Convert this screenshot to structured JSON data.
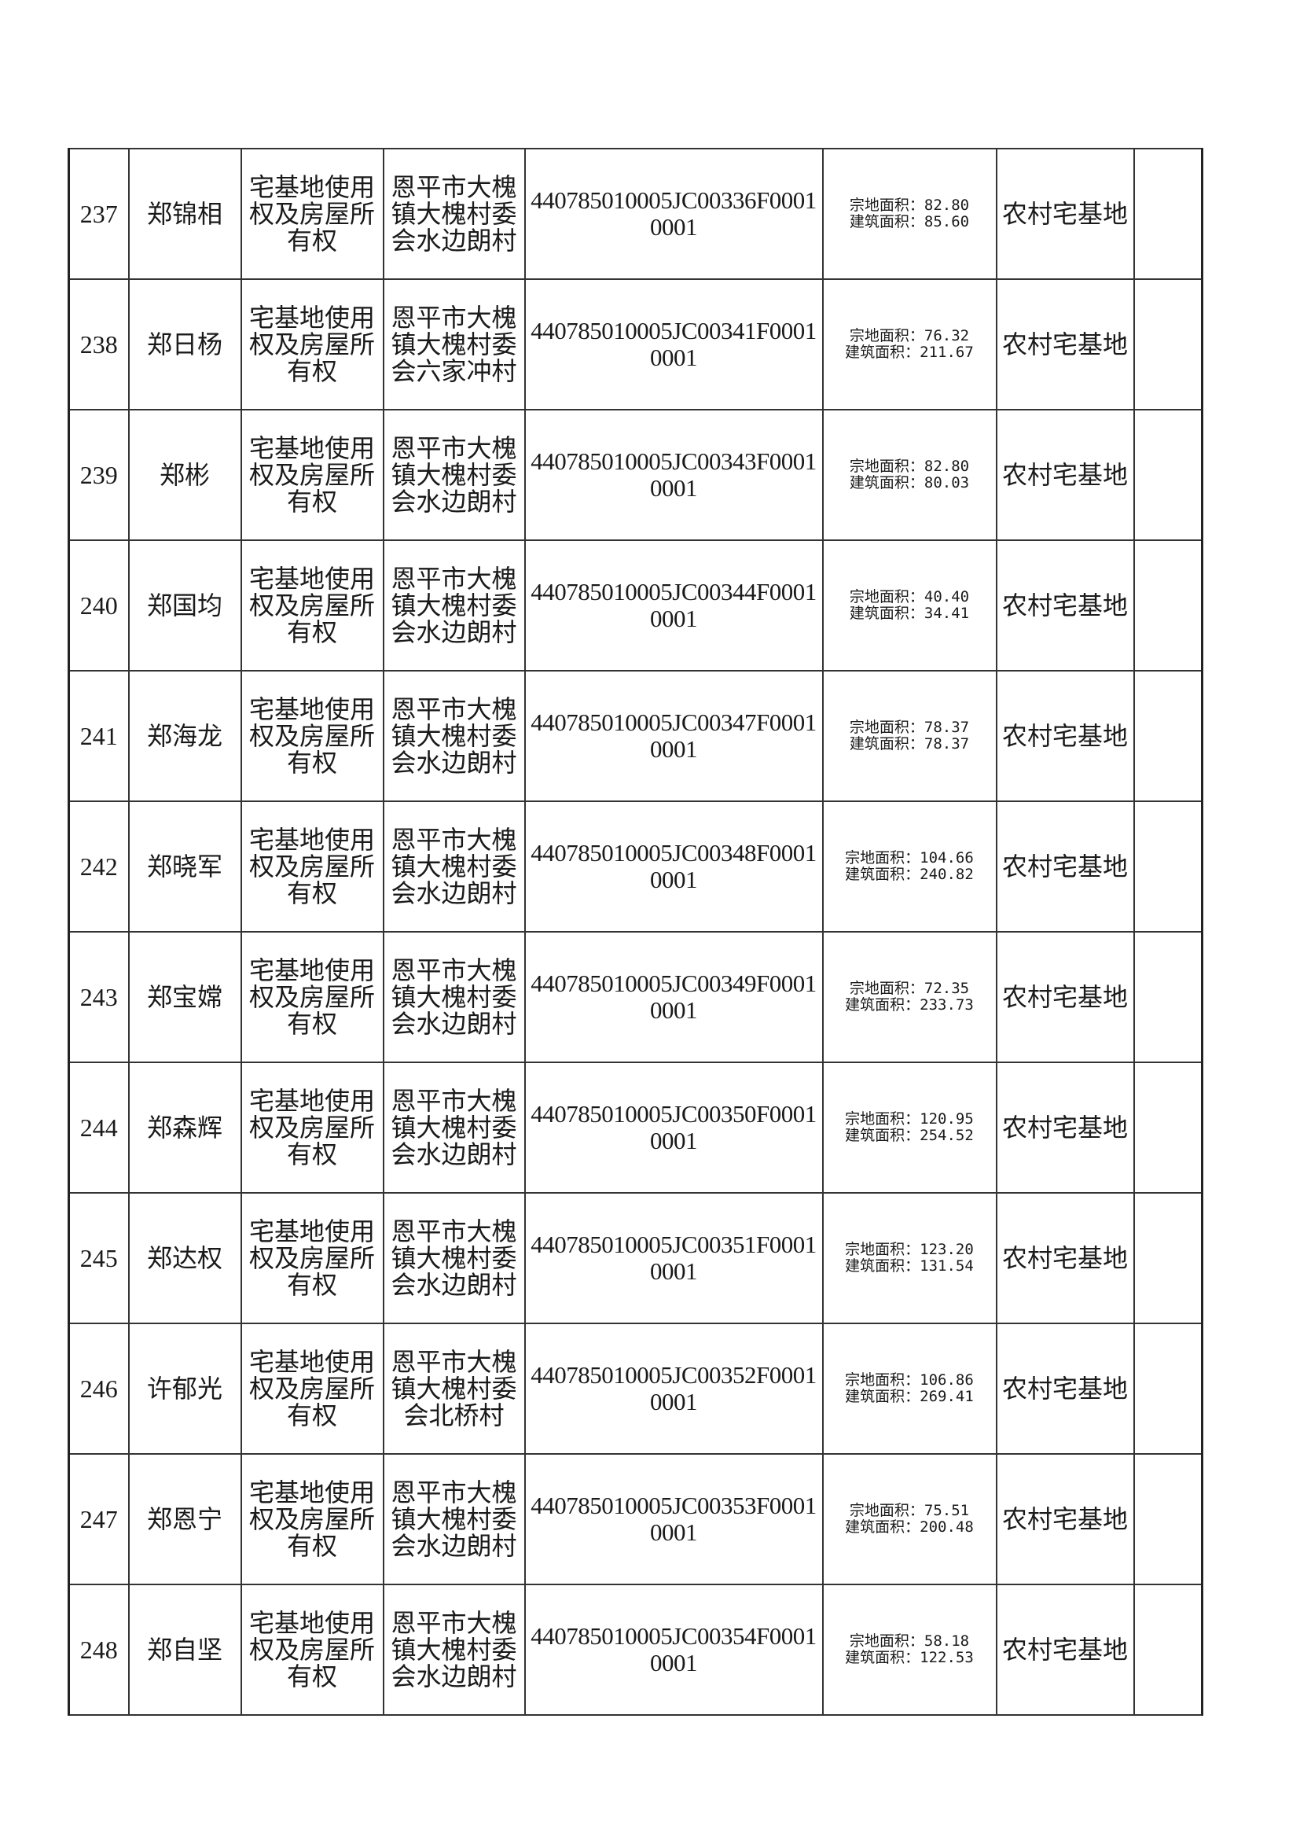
{
  "table": {
    "rows": [
      {
        "no": "237",
        "name": "郑锦相",
        "right_type": "宅基地使用权及房屋所有权",
        "location": "恩平市大槐镇大槐村委会水边朗村",
        "code": "440785010005JC00336F00010001",
        "land_area": "宗地面积：82.80",
        "building_area": "建筑面积：85.60",
        "use": "农村宅基地",
        "remark": ""
      },
      {
        "no": "238",
        "name": "郑日杨",
        "right_type": "宅基地使用权及房屋所有权",
        "location": "恩平市大槐镇大槐村委会六家冲村",
        "code": "440785010005JC00341F00010001",
        "land_area": "宗地面积：76.32",
        "building_area": "建筑面积：211.67",
        "use": "农村宅基地",
        "remark": ""
      },
      {
        "no": "239",
        "name": "郑彬",
        "right_type": "宅基地使用权及房屋所有权",
        "location": "恩平市大槐镇大槐村委会水边朗村",
        "code": "440785010005JC00343F00010001",
        "land_area": "宗地面积：82.80",
        "building_area": "建筑面积：80.03",
        "use": "农村宅基地",
        "remark": ""
      },
      {
        "no": "240",
        "name": "郑国均",
        "right_type": "宅基地使用权及房屋所有权",
        "location": "恩平市大槐镇大槐村委会水边朗村",
        "code": "440785010005JC00344F00010001",
        "land_area": "宗地面积：40.40",
        "building_area": "建筑面积：34.41",
        "use": "农村宅基地",
        "remark": ""
      },
      {
        "no": "241",
        "name": "郑海龙",
        "right_type": "宅基地使用权及房屋所有权",
        "location": "恩平市大槐镇大槐村委会水边朗村",
        "code": "440785010005JC00347F00010001",
        "land_area": "宗地面积：78.37",
        "building_area": "建筑面积：78.37",
        "use": "农村宅基地",
        "remark": ""
      },
      {
        "no": "242",
        "name": "郑晓军",
        "right_type": "宅基地使用权及房屋所有权",
        "location": "恩平市大槐镇大槐村委会水边朗村",
        "code": "440785010005JC00348F00010001",
        "land_area": "宗地面积：104.66",
        "building_area": "建筑面积：240.82",
        "use": "农村宅基地",
        "remark": ""
      },
      {
        "no": "243",
        "name": "郑宝嫦",
        "right_type": "宅基地使用权及房屋所有权",
        "location": "恩平市大槐镇大槐村委会水边朗村",
        "code": "440785010005JC00349F00010001",
        "land_area": "宗地面积：72.35",
        "building_area": "建筑面积：233.73",
        "use": "农村宅基地",
        "remark": ""
      },
      {
        "no": "244",
        "name": "郑森辉",
        "right_type": "宅基地使用权及房屋所有权",
        "location": "恩平市大槐镇大槐村委会水边朗村",
        "code": "440785010005JC00350F00010001",
        "land_area": "宗地面积：120.95",
        "building_area": "建筑面积：254.52",
        "use": "农村宅基地",
        "remark": ""
      },
      {
        "no": "245",
        "name": "郑达权",
        "right_type": "宅基地使用权及房屋所有权",
        "location": "恩平市大槐镇大槐村委会水边朗村",
        "code": "440785010005JC00351F00010001",
        "land_area": "宗地面积：123.20",
        "building_area": "建筑面积：131.54",
        "use": "农村宅基地",
        "remark": ""
      },
      {
        "no": "246",
        "name": "许郁光",
        "right_type": "宅基地使用权及房屋所有权",
        "location": "恩平市大槐镇大槐村委会北桥村",
        "code": "440785010005JC00352F00010001",
        "land_area": "宗地面积：106.86",
        "building_area": "建筑面积：269.41",
        "use": "农村宅基地",
        "remark": ""
      },
      {
        "no": "247",
        "name": "郑恩宁",
        "right_type": "宅基地使用权及房屋所有权",
        "location": "恩平市大槐镇大槐村委会水边朗村",
        "code": "440785010005JC00353F00010001",
        "land_area": "宗地面积：75.51",
        "building_area": "建筑面积：200.48",
        "use": "农村宅基地",
        "remark": ""
      },
      {
        "no": "248",
        "name": "郑自坚",
        "right_type": "宅基地使用权及房屋所有权",
        "location": "恩平市大槐镇大槐村委会水边朗村",
        "code": "440785010005JC00354F00010001",
        "land_area": "宗地面积：58.18",
        "building_area": "建筑面积：122.53",
        "use": "农村宅基地",
        "remark": ""
      }
    ]
  }
}
